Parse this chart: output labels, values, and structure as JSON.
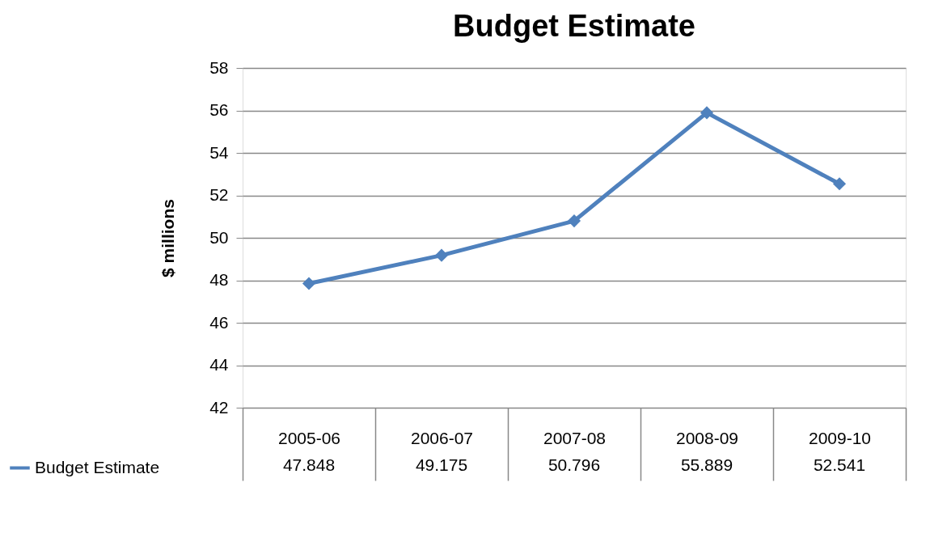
{
  "chart_data": {
    "type": "line",
    "title": "Budget Estimate",
    "ylabel": "$ millions",
    "categories": [
      "2005-06",
      "2006-07",
      "2007-08",
      "2008-09",
      "2009-10"
    ],
    "series": [
      {
        "name": "Budget Estimate",
        "color": "#4f81bd",
        "values": [
          47.848,
          49.175,
          50.796,
          55.889,
          52.541
        ]
      }
    ],
    "ylim": [
      42,
      58
    ],
    "yticks": [
      42,
      44,
      46,
      48,
      50,
      52,
      54,
      56,
      58
    ],
    "grid": "y",
    "legend": "bottom left",
    "marker": "diamond",
    "line_style": "solid",
    "data_labels": true
  }
}
